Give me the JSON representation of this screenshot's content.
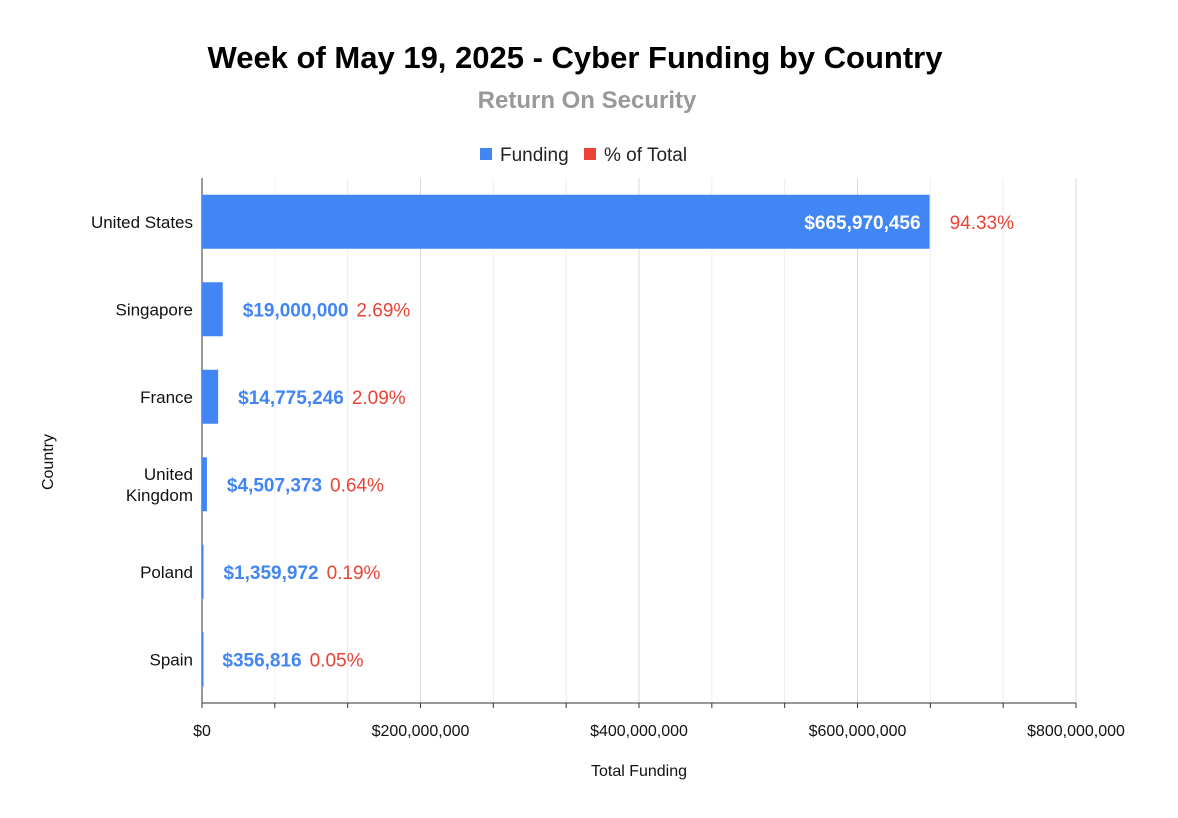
{
  "chart_data": {
    "type": "bar",
    "orientation": "horizontal",
    "title": "Week of May 19, 2025 - Cyber Funding by Country",
    "subtitle": "Return On Security",
    "xlabel": "Total Funding",
    "ylabel": "Country",
    "xlim": [
      0,
      800000000
    ],
    "grid": true,
    "legend_position": "top",
    "categories": [
      "United States",
      "Singapore",
      "France",
      "United\nKingdom",
      "Poland",
      "Spain"
    ],
    "x_ticks": [
      {
        "value": 0,
        "label": "$0"
      },
      {
        "value": 200000000,
        "label": "$200,000,000"
      },
      {
        "value": 400000000,
        "label": "$400,000,000"
      },
      {
        "value": 600000000,
        "label": "$600,000,000"
      },
      {
        "value": 800000000,
        "label": "$800,000,000"
      }
    ],
    "series": [
      {
        "name": "Funding",
        "color": "#4285f4",
        "values": [
          665970456,
          19000000,
          14775246,
          4507373,
          1359972,
          356816
        ],
        "labels": [
          "$665,970,456",
          "$19,000,000",
          "$14,775,246",
          "$4,507,373",
          "$1,359,972",
          "$356,816"
        ]
      },
      {
        "name": "% of Total",
        "color": "#ea4335",
        "values": [
          94.33,
          2.69,
          2.09,
          0.64,
          0.19,
          0.05
        ],
        "labels": [
          "94.33%",
          "2.69%",
          "2.09%",
          "0.64%",
          "0.19%",
          "0.05%"
        ]
      }
    ]
  }
}
